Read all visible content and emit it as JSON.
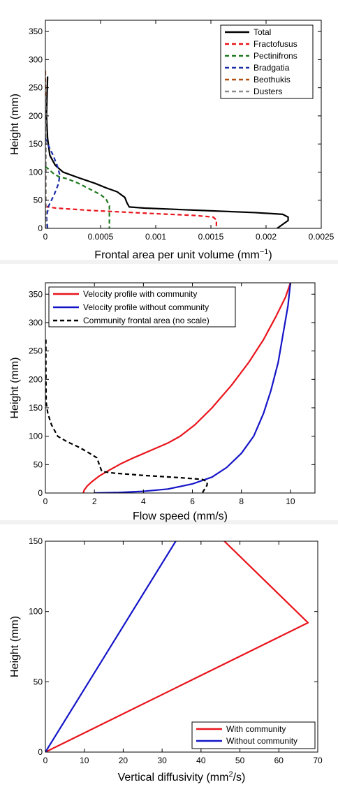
{
  "chart_data": [
    {
      "type": "line",
      "xlabel": "Frontal area per unit volume (mm",
      "xlabel_sup": "−1",
      "xlabel_suffix": ")",
      "ylabel": "Height (mm)",
      "xlim": [
        0,
        0.0025
      ],
      "ylim": [
        0,
        370
      ],
      "xticks": [
        "0",
        "0.0005",
        "0.001",
        "0.0015",
        "0.002",
        "0.0025"
      ],
      "yticks": [
        "0",
        "50",
        "100",
        "150",
        "200",
        "250",
        "300",
        "350"
      ],
      "legend_position": "top-right",
      "series": [
        {
          "name": "Total",
          "color": "#000000",
          "dashed": false,
          "points": [
            [
              2e-05,
              270
            ],
            [
              1e-05,
              200
            ],
            [
              2e-05,
              160
            ],
            [
              4e-05,
              130
            ],
            [
              9e-05,
              112
            ],
            [
              0.00016,
              100
            ],
            [
              0.0003,
              90
            ],
            [
              0.00045,
              80
            ],
            [
              0.00055,
              72
            ],
            [
              0.00065,
              65
            ],
            [
              0.00072,
              55
            ],
            [
              0.00074,
              45
            ],
            [
              0.00076,
              38
            ],
            [
              0.0009,
              36
            ],
            [
              0.0014,
              32
            ],
            [
              0.0019,
              28
            ],
            [
              0.00215,
              25
            ],
            [
              0.0022,
              20
            ],
            [
              0.0022,
              14
            ],
            [
              0.0021,
              0
            ]
          ]
        },
        {
          "name": "Fractofusus",
          "color": "#e8141c",
          "dashed": true,
          "points": [
            [
              0,
              40
            ],
            [
              2e-05,
              38
            ],
            [
              0.0001,
              36
            ],
            [
              0.0004,
              32
            ],
            [
              0.0009,
              27
            ],
            [
              0.00135,
              23
            ],
            [
              0.00152,
              20
            ],
            [
              0.00155,
              15
            ],
            [
              0.00155,
              0
            ]
          ]
        },
        {
          "name": "Pectinifrons",
          "color": "#1f7a1f",
          "dashed": true,
          "points": [
            [
              0,
              110
            ],
            [
              3e-05,
              105
            ],
            [
              7e-05,
              98
            ],
            [
              0.00012,
              92
            ],
            [
              0.0002,
              88
            ],
            [
              0.0003,
              80
            ],
            [
              0.0004,
              70
            ],
            [
              0.0005,
              60
            ],
            [
              0.00055,
              52
            ],
            [
              0.00058,
              40
            ],
            [
              0.00058,
              0
            ]
          ]
        },
        {
          "name": "Bradgatia",
          "color": "#1a2ea8",
          "dashed": true,
          "points": [
            [
              0,
              160
            ],
            [
              2e-05,
              150
            ],
            [
              7e-05,
              130
            ],
            [
              0.00011,
              110
            ],
            [
              0.00013,
              95
            ],
            [
              0.00012,
              80
            ],
            [
              8e-05,
              60
            ],
            [
              3e-05,
              40
            ],
            [
              1e-05,
              20
            ],
            [
              2e-05,
              0
            ]
          ]
        },
        {
          "name": "Beothukis",
          "color": "#b25010",
          "dashed": true,
          "points": [
            [
              0,
              280
            ],
            [
              2e-06,
              200
            ],
            [
              3e-06,
              120
            ],
            [
              4e-06,
              60
            ],
            [
              3e-06,
              0
            ]
          ]
        },
        {
          "name": "Dusters",
          "color": "#8c8c8c",
          "dashed": true,
          "points": [
            [
              3e-06,
              230
            ],
            [
              5e-06,
              150
            ],
            [
              5e-06,
              60
            ],
            [
              3e-06,
              0
            ]
          ]
        }
      ]
    },
    {
      "type": "line",
      "xlabel": "Flow speed (mm/s)",
      "ylabel": "Height (mm)",
      "xlim": [
        0,
        11
      ],
      "ylim": [
        0,
        370
      ],
      "xticks": [
        "0",
        "2",
        "4",
        "6",
        "8",
        "10"
      ],
      "yticks": [
        "0",
        "50",
        "100",
        "150",
        "200",
        "250",
        "300",
        "350"
      ],
      "legend_position": "top-left",
      "series": [
        {
          "name": "Velocity profile with community",
          "color": "#e8141c",
          "dashed": false,
          "points": [
            [
              1.55,
              0
            ],
            [
              1.58,
              5
            ],
            [
              1.7,
              12
            ],
            [
              1.9,
              20
            ],
            [
              2.2,
              30
            ],
            [
              2.6,
              40
            ],
            [
              3.1,
              52
            ],
            [
              3.6,
              62
            ],
            [
              4.3,
              75
            ],
            [
              5.0,
              88
            ],
            [
              5.5,
              100
            ],
            [
              6.1,
              120
            ],
            [
              6.8,
              150
            ],
            [
              7.6,
              190
            ],
            [
              8.3,
              230
            ],
            [
              8.9,
              270
            ],
            [
              9.4,
              310
            ],
            [
              9.8,
              345
            ],
            [
              10.0,
              370
            ]
          ]
        },
        {
          "name": "Velocity profile without community",
          "color": "#1515c8",
          "dashed": false,
          "points": [
            [
              2.0,
              0
            ],
            [
              3.0,
              1
            ],
            [
              4.0,
              3
            ],
            [
              5.0,
              7
            ],
            [
              6.0,
              16
            ],
            [
              6.8,
              28
            ],
            [
              7.4,
              45
            ],
            [
              8.0,
              70
            ],
            [
              8.5,
              100
            ],
            [
              8.9,
              140
            ],
            [
              9.2,
              180
            ],
            [
              9.5,
              230
            ],
            [
              9.7,
              280
            ],
            [
              9.9,
              330
            ],
            [
              10.0,
              370
            ]
          ]
        },
        {
          "name": "Community frontal area (no scale)",
          "color": "#000000",
          "dashed": true,
          "points": [
            [
              0.02,
              270
            ],
            [
              0.02,
              220
            ],
            [
              0.03,
              160
            ],
            [
              0.1,
              140
            ],
            [
              0.25,
              120
            ],
            [
              0.5,
              100
            ],
            [
              0.9,
              90
            ],
            [
              1.4,
              80
            ],
            [
              1.8,
              70
            ],
            [
              2.1,
              62
            ],
            [
              2.2,
              50
            ],
            [
              2.3,
              38
            ],
            [
              2.8,
              35
            ],
            [
              4.0,
              31
            ],
            [
              5.5,
              27
            ],
            [
              6.4,
              24
            ],
            [
              6.6,
              20
            ],
            [
              6.6,
              14
            ],
            [
              6.4,
              0
            ]
          ]
        }
      ]
    },
    {
      "type": "line",
      "xlabel": "Vertical diffusivity (mm",
      "xlabel_sup": "2",
      "xlabel_suffix": "/s)",
      "ylabel": "Height (mm)",
      "xlim": [
        0,
        70
      ],
      "ylim": [
        0,
        150
      ],
      "xticks": [
        "0",
        "10",
        "20",
        "30",
        "40",
        "50",
        "60",
        "70"
      ],
      "yticks": [
        "0",
        "50",
        "100",
        "150"
      ],
      "legend_position": "bottom-right",
      "series": [
        {
          "name": "With community",
          "color": "#e8141c",
          "dashed": false,
          "points": [
            [
              0,
              0
            ],
            [
              67.5,
              92
            ],
            [
              46,
              150
            ]
          ]
        },
        {
          "name": "Without community",
          "color": "#1515c8",
          "dashed": false,
          "points": [
            [
              0,
              0
            ],
            [
              33.5,
              150
            ]
          ]
        }
      ]
    }
  ]
}
